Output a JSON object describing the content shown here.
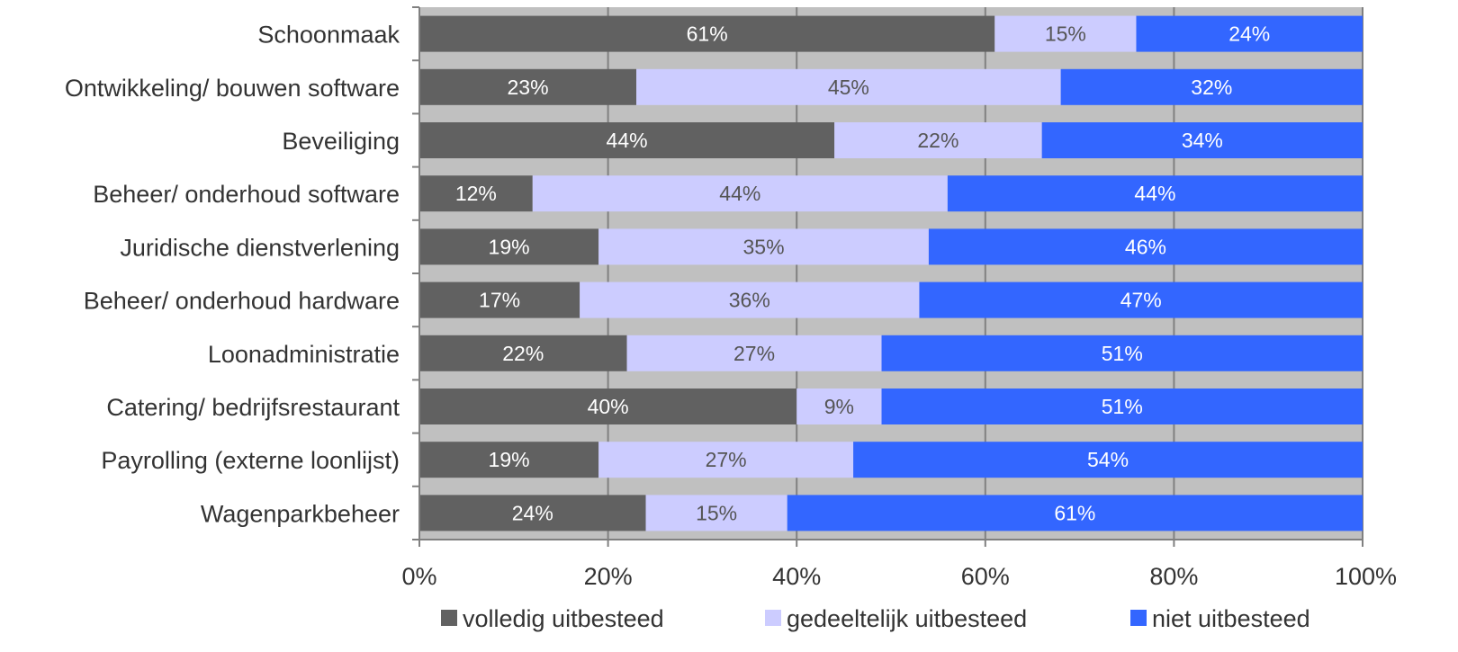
{
  "chart_data": {
    "type": "bar",
    "orientation": "horizontal",
    "stacked": true,
    "categories": [
      "Schoonmaak",
      "Ontwikkeling/ bouwen software",
      "Beveiliging",
      "Beheer/ onderhoud software",
      "Juridische dienstverlening",
      "Beheer/ onderhoud hardware",
      "Loonadministratie",
      "Catering/ bedrijfsrestaurant",
      "Payrolling (externe loonlijst)",
      "Wagenparkbeheer"
    ],
    "series": [
      {
        "name": "volledig uitbesteed",
        "color": "#616161",
        "label_color": "#ffffff",
        "values": [
          61,
          23,
          44,
          12,
          19,
          17,
          22,
          40,
          19,
          24
        ]
      },
      {
        "name": "gedeeltelijk uitbesteed",
        "color": "#ccccff",
        "label_color": "#555555",
        "values": [
          15,
          45,
          22,
          44,
          35,
          36,
          27,
          9,
          27,
          15
        ]
      },
      {
        "name": "niet uitbesteed",
        "color": "#3366ff",
        "label_color": "#ffffff",
        "values": [
          24,
          32,
          34,
          44,
          46,
          47,
          51,
          51,
          54,
          61
        ]
      }
    ],
    "data_label_suffix": "%",
    "xlim": [
      0,
      100
    ],
    "xticks": [
      "0%",
      "20%",
      "40%",
      "60%",
      "80%",
      "100%"
    ],
    "grid": true,
    "plot_background": "#c0c0c0",
    "legend_position": "bottom"
  }
}
